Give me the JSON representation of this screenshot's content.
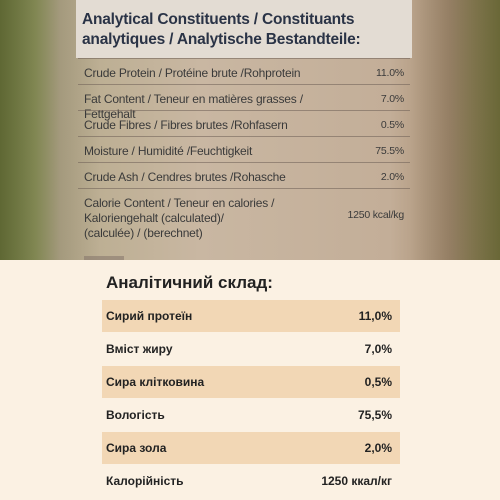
{
  "photo_label": {
    "heading_line1": "Analytical Constituents / Constituants",
    "heading_line2": "analytiques / Analytische Bestandteile:",
    "rows": [
      {
        "name": "Crude Protein / Protéine brute /Rohprotein",
        "value": "11.0%"
      },
      {
        "name": "Fat Content / Teneur en matières grasses / Fettgehalt",
        "value": "7.0%"
      },
      {
        "name": "Crude Fibres / Fibres brutes /Rohfasern",
        "value": "0.5%"
      },
      {
        "name": "Moisture / Humidité /Feuchtigkeit",
        "value": "75.5%"
      },
      {
        "name": "Crude Ash / Cendres brutes /Rohasche",
        "value": "2.0%"
      }
    ],
    "calorie": {
      "line1": "Calorie Content / Teneur en calories /",
      "line2": "Kaloriengehalt (calculated)/",
      "line3": "(calculée) / (berechnet)",
      "value": "1250 kcal/kg"
    }
  },
  "ua_table": {
    "title": "Аналітичний склад:",
    "rows": [
      {
        "name": "Сирий протеїн",
        "value": "11,0%"
      },
      {
        "name": "Вміст жиру",
        "value": "7,0%"
      },
      {
        "name": "Сира клітковина",
        "value": "0,5%"
      },
      {
        "name": "Вологість",
        "value": "75,5%"
      },
      {
        "name": "Сира зола",
        "value": "2,0%"
      },
      {
        "name": "Калорійність",
        "value": "1250 ккал/кг"
      }
    ]
  },
  "colors": {
    "photo_label_bg": "#c9b7a2",
    "table_bg": "#fbf1e3",
    "row_highlight": "#f2d7b5",
    "heading_text": "#2a3346"
  }
}
